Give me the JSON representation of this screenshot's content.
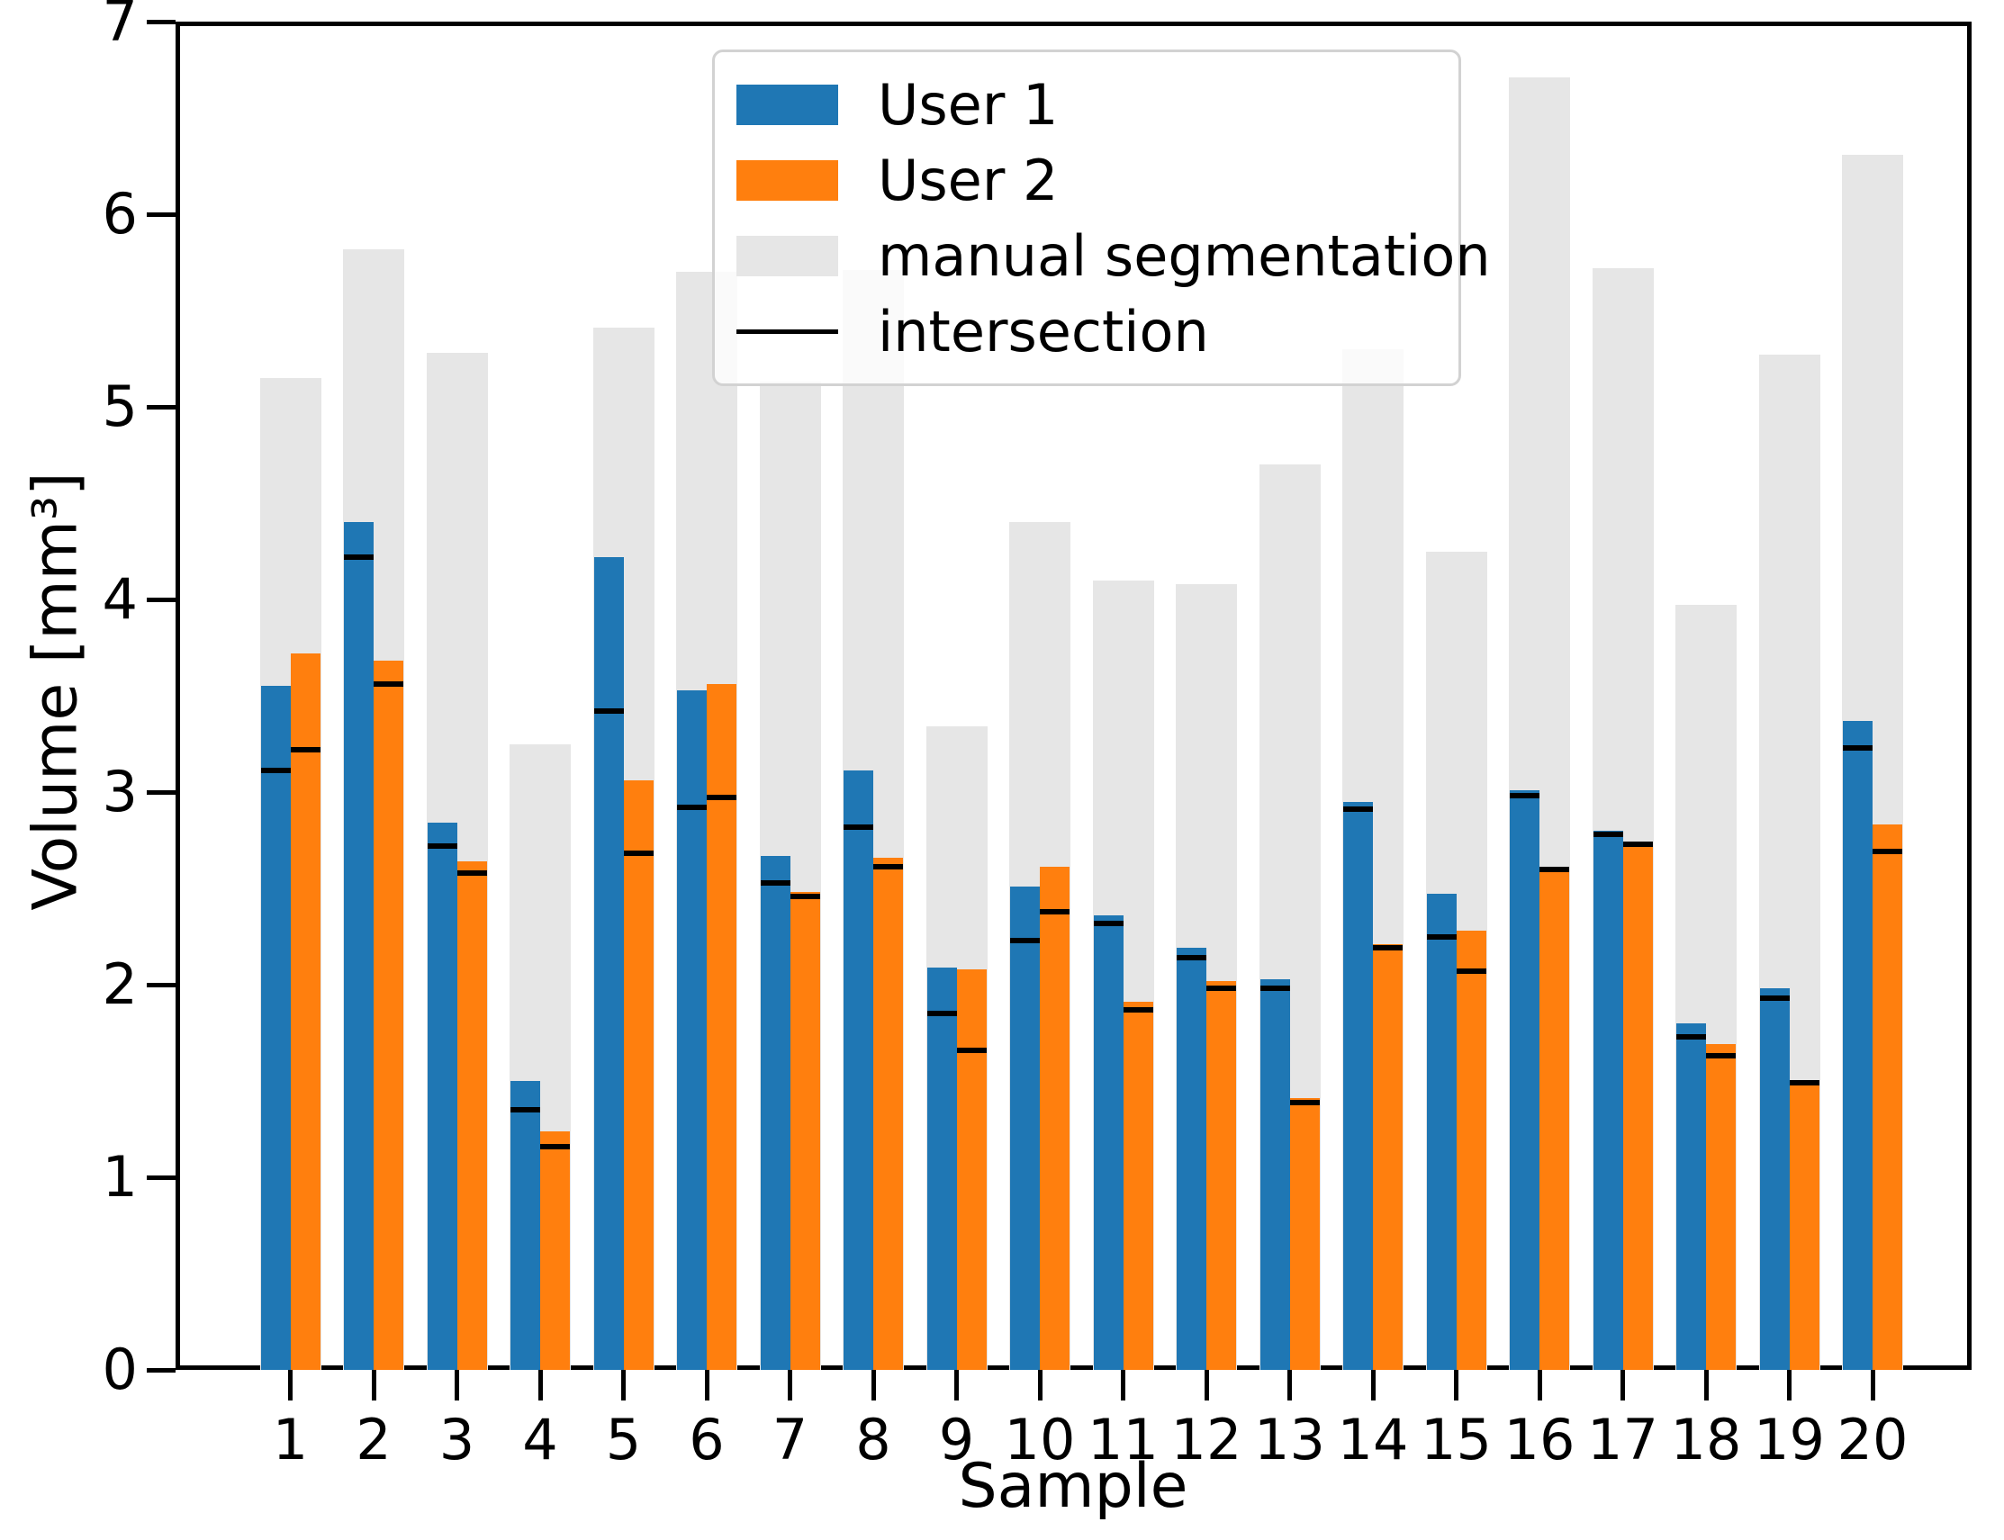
{
  "figure": {
    "background": "#ffffff",
    "frame_color": "#000000"
  },
  "axes": {
    "xlabel": "Sample",
    "ylabel": "Volume [mm³]",
    "y_tick_labels": [
      "0",
      "1",
      "2",
      "3",
      "4",
      "5",
      "6",
      "7"
    ],
    "x_tick_labels": [
      "1",
      "2",
      "3",
      "4",
      "5",
      "6",
      "7",
      "8",
      "9",
      "10",
      "11",
      "12",
      "13",
      "14",
      "15",
      "16",
      "17",
      "18",
      "19",
      "20"
    ]
  },
  "legend": {
    "items": [
      {
        "id": "user1",
        "label": "User 1",
        "swatch": "rect",
        "color": "#1f77b4"
      },
      {
        "id": "user2",
        "label": "User 2",
        "swatch": "rect",
        "color": "#ff7f0e"
      },
      {
        "id": "manual-segmentation",
        "label": "manual segmentation",
        "swatch": "rect",
        "color": "#e6e6e6"
      },
      {
        "id": "intersection",
        "label": "intersection",
        "swatch": "line",
        "color": "#000000"
      }
    ]
  },
  "chart_data": {
    "type": "bar",
    "title": "",
    "xlabel": "Sample",
    "ylabel": "Volume [mm³]",
    "ylim": [
      0,
      7
    ],
    "grid": false,
    "legend_position": "upper center",
    "categories": [
      1,
      2,
      3,
      4,
      5,
      6,
      7,
      8,
      9,
      10,
      11,
      12,
      13,
      14,
      15,
      16,
      17,
      18,
      19,
      20
    ],
    "series": [
      {
        "name": "manual segmentation",
        "role": "background-bar",
        "color": "#e6e6e6",
        "values": [
          5.15,
          5.82,
          5.28,
          3.25,
          5.41,
          5.7,
          5.13,
          5.71,
          3.34,
          4.4,
          4.1,
          4.08,
          4.7,
          5.3,
          4.25,
          6.71,
          5.72,
          3.97,
          5.27,
          6.31
        ]
      },
      {
        "name": "User 1",
        "role": "bar",
        "color": "#1f77b4",
        "values": [
          3.55,
          4.4,
          2.84,
          1.5,
          4.22,
          3.53,
          2.67,
          3.11,
          2.09,
          2.51,
          2.36,
          2.19,
          2.03,
          2.95,
          2.47,
          3.01,
          2.8,
          1.8,
          1.98,
          3.37
        ]
      },
      {
        "name": "User 2",
        "role": "bar",
        "color": "#ff7f0e",
        "values": [
          3.72,
          3.68,
          2.64,
          1.24,
          3.06,
          3.56,
          2.48,
          2.66,
          2.08,
          2.61,
          1.91,
          2.02,
          1.41,
          2.21,
          2.28,
          2.6,
          2.73,
          1.69,
          1.5,
          2.83
        ]
      },
      {
        "name": "intersection (on User 1)",
        "role": "marker-line",
        "color": "#000000",
        "values": [
          3.11,
          4.22,
          2.72,
          1.35,
          3.42,
          2.92,
          2.53,
          2.82,
          1.85,
          2.23,
          2.32,
          2.14,
          1.98,
          2.91,
          2.25,
          2.98,
          2.78,
          1.73,
          1.93,
          3.23
        ]
      },
      {
        "name": "intersection (on User 2)",
        "role": "marker-line",
        "color": "#000000",
        "values": [
          3.22,
          3.56,
          2.58,
          1.16,
          2.68,
          2.97,
          2.46,
          2.61,
          1.66,
          2.38,
          1.87,
          1.98,
          1.39,
          2.19,
          2.07,
          2.6,
          2.73,
          1.63,
          1.49,
          2.69
        ]
      }
    ]
  }
}
